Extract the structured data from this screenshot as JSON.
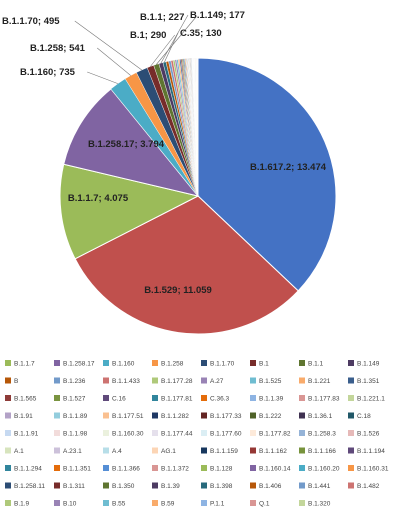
{
  "chart_data": {
    "type": "pie",
    "title": "",
    "slices": [
      {
        "label": "B.1.617.2",
        "value": 13474,
        "color": "#4472C4",
        "shown_label": "B.1.617.2; 13.474"
      },
      {
        "label": "B.1.529",
        "value": 11059,
        "color": "#C0504D",
        "shown_label": "B.1.529; 11.059"
      },
      {
        "label": "B.1.1.7",
        "value": 4075,
        "color": "#9BBB59",
        "shown_label": "B.1.1.7; 4.075"
      },
      {
        "label": "B.1.258.17",
        "value": 3794,
        "color": "#8064A2",
        "shown_label": "B.1.258.17; 3.794"
      },
      {
        "label": "B.1.160",
        "value": 735,
        "color": "#4BACC6",
        "shown_label": "B.1.160; 735"
      },
      {
        "label": "B.1.258",
        "value": 541,
        "color": "#F79646",
        "shown_label": "B.1.258; 541"
      },
      {
        "label": "B.1.1.70",
        "value": 495,
        "color": "#2C4D75",
        "shown_label": "B.1.1.70; 495"
      },
      {
        "label": "B.1",
        "value": 290,
        "color": "#772C2A",
        "shown_label": "B.1; 290"
      },
      {
        "label": "B.1.1",
        "value": 227,
        "color": "#5F7530",
        "shown_label": "B.1.1; 227"
      },
      {
        "label": "B.1.149",
        "value": 177,
        "color": "#4D3B62",
        "shown_label": "B.1.149; 177"
      },
      {
        "label": "C.35",
        "value": 130,
        "color": "#276A7C",
        "shown_label": "C.35; 130"
      },
      {
        "label": "B",
        "value": 110,
        "color": "#B65708",
        "shown_label": ""
      },
      {
        "label": "B.1.236",
        "value": 100,
        "color": "#729ACA",
        "shown_label": ""
      },
      {
        "label": "B.1.1.433",
        "value": 90,
        "color": "#CD7371",
        "shown_label": ""
      },
      {
        "label": "B.1.177.28",
        "value": 80,
        "color": "#AFC97A",
        "shown_label": ""
      },
      {
        "label": "A.27",
        "value": 72,
        "color": "#9983B5",
        "shown_label": ""
      },
      {
        "label": "B.1.525",
        "value": 66,
        "color": "#6FBDD1",
        "shown_label": ""
      },
      {
        "label": "B.1.221",
        "value": 60,
        "color": "#F9AB6B",
        "shown_label": ""
      },
      {
        "label": "B.1.351",
        "value": 55,
        "color": "#3A5E8C",
        "shown_label": ""
      },
      {
        "label": "B.1.565",
        "value": 50,
        "color": "#8E3B38",
        "shown_label": ""
      },
      {
        "label": "B.1.527",
        "value": 46,
        "color": "#7A9440",
        "shown_label": ""
      },
      {
        "label": "C.16",
        "value": 42,
        "color": "#604A7B",
        "shown_label": ""
      },
      {
        "label": "B.1.177.81",
        "value": 38,
        "color": "#31859C",
        "shown_label": ""
      },
      {
        "label": "C.36.3",
        "value": 35,
        "color": "#E46C0A",
        "shown_label": ""
      },
      {
        "label": "B.1.1.39",
        "value": 32,
        "color": "#8EB4E3",
        "shown_label": ""
      },
      {
        "label": "B.1.177.83",
        "value": 30,
        "color": "#D99694",
        "shown_label": ""
      },
      {
        "label": "B.1.221.1",
        "value": 28,
        "color": "#C3D69B",
        "shown_label": ""
      },
      {
        "label": "B.1.91",
        "value": 26,
        "color": "#B3A2C7",
        "shown_label": ""
      },
      {
        "label": "B.1.1.89",
        "value": 24,
        "color": "#93CDDD",
        "shown_label": ""
      },
      {
        "label": "B.1.177.51",
        "value": 22,
        "color": "#FAC090",
        "shown_label": ""
      },
      {
        "label": "B.1.1.282",
        "value": 20,
        "color": "#1F3864",
        "shown_label": ""
      },
      {
        "label": "B.1.177.33",
        "value": 19,
        "color": "#632523",
        "shown_label": ""
      },
      {
        "label": "B.1.222",
        "value": 18,
        "color": "#4F6228",
        "shown_label": ""
      },
      {
        "label": "B.1.36.1",
        "value": 17,
        "color": "#3F3151",
        "shown_label": ""
      },
      {
        "label": "C.18",
        "value": 16,
        "color": "#215868",
        "shown_label": ""
      },
      {
        "label": "B.1.1.91",
        "value": 15,
        "color": "#C6D9F1",
        "shown_label": ""
      },
      {
        "label": "B.1.1.98",
        "value": 14,
        "color": "#F2DCDB",
        "shown_label": ""
      },
      {
        "label": "B.1.160.30",
        "value": 13,
        "color": "#EBF1DE",
        "shown_label": ""
      },
      {
        "label": "B.1.177.44",
        "value": 12,
        "color": "#E5E0EC",
        "shown_label": ""
      },
      {
        "label": "B.1.177.60",
        "value": 12,
        "color": "#DBEEF4",
        "shown_label": ""
      },
      {
        "label": "B.1.177.82",
        "value": 11,
        "color": "#FDEADA",
        "shown_label": ""
      },
      {
        "label": "B.1.258.3",
        "value": 11,
        "color": "#95B3D7",
        "shown_label": ""
      },
      {
        "label": "B.1.526",
        "value": 10,
        "color": "#E6B9B8",
        "shown_label": ""
      },
      {
        "label": "A.1",
        "value": 10,
        "color": "#D7E4BD",
        "shown_label": ""
      },
      {
        "label": "A.23.1",
        "value": 9,
        "color": "#CCC1DA",
        "shown_label": ""
      },
      {
        "label": "A.4",
        "value": 9,
        "color": "#B7DEE8",
        "shown_label": ""
      },
      {
        "label": "AG.1",
        "value": 8,
        "color": "#FCD5B5",
        "shown_label": ""
      },
      {
        "label": "B.1.1.159",
        "value": 8,
        "color": "#17375E",
        "shown_label": ""
      },
      {
        "label": "B.1.1.162",
        "value": 8,
        "color": "#953735",
        "shown_label": ""
      },
      {
        "label": "B.1.1.166",
        "value": 7,
        "color": "#77933C",
        "shown_label": ""
      },
      {
        "label": "B.1.1.194",
        "value": 7,
        "color": "#5F497A",
        "shown_label": ""
      },
      {
        "label": "B.1.1.294",
        "value": 7,
        "color": "#31859C",
        "shown_label": ""
      },
      {
        "label": "B.1.1.351",
        "value": 6,
        "color": "#E46C0A",
        "shown_label": ""
      },
      {
        "label": "B.1.1.366",
        "value": 6,
        "color": "#558ED5",
        "shown_label": ""
      },
      {
        "label": "B.1.1.372",
        "value": 6,
        "color": "#D99694",
        "shown_label": ""
      },
      {
        "label": "B.1.128",
        "value": 6,
        "color": "#9BBB59",
        "shown_label": ""
      },
      {
        "label": "B.1.160.14",
        "value": 5,
        "color": "#8064A2",
        "shown_label": ""
      },
      {
        "label": "B.1.160.20",
        "value": 5,
        "color": "#4BACC6",
        "shown_label": ""
      },
      {
        "label": "B.1.160.31",
        "value": 5,
        "color": "#F79646",
        "shown_label": ""
      },
      {
        "label": "B.1.258.11",
        "value": 5,
        "color": "#2C4D75",
        "shown_label": ""
      },
      {
        "label": "B.1.311",
        "value": 5,
        "color": "#772C2A",
        "shown_label": ""
      },
      {
        "label": "B.1.350",
        "value": 4,
        "color": "#5F7530",
        "shown_label": ""
      },
      {
        "label": "B.1.39",
        "value": 4,
        "color": "#4D3B62",
        "shown_label": ""
      },
      {
        "label": "B.1.398",
        "value": 4,
        "color": "#276A7C",
        "shown_label": ""
      },
      {
        "label": "B.1.406",
        "value": 4,
        "color": "#B65708",
        "shown_label": ""
      },
      {
        "label": "B.1.441",
        "value": 4,
        "color": "#729ACA",
        "shown_label": ""
      },
      {
        "label": "B.1.482",
        "value": 3,
        "color": "#CD7371",
        "shown_label": ""
      },
      {
        "label": "B.1.9",
        "value": 3,
        "color": "#AFC97A",
        "shown_label": ""
      },
      {
        "label": "B.10",
        "value": 3,
        "color": "#9983B5",
        "shown_label": ""
      },
      {
        "label": "B.55",
        "value": 3,
        "color": "#6FBDD1",
        "shown_label": ""
      },
      {
        "label": "B.59",
        "value": 3,
        "color": "#F9AB6B",
        "shown_label": ""
      },
      {
        "label": "P.1.1",
        "value": 2,
        "color": "#8EB4E3",
        "shown_label": ""
      },
      {
        "label": "Q.1",
        "value": 2,
        "color": "#D99694",
        "shown_label": ""
      },
      {
        "label": "B.1.320",
        "value": 2,
        "color": "#C3D69B",
        "shown_label": ""
      }
    ],
    "legend": {
      "position": "bottom",
      "rows": [
        [
          "B.1.1.7",
          "B.1.258.17",
          "B.1.160",
          "B.1.258",
          "B.1.1.70",
          "B.1",
          "B.1.1",
          "B.1.149"
        ],
        [
          "B",
          "B.1.236",
          "B.1.1.433",
          "B.1.177.28",
          "A.27",
          "B.1.525",
          "B.1.221",
          "B.1.351"
        ],
        [
          "B.1.565",
          "B.1.527",
          "C.16",
          "B.1.177.81",
          "C.36.3",
          "B.1.1.39",
          "B.1.177.83",
          "B.1.221.1"
        ],
        [
          "B.1.91",
          "B.1.1.89",
          "B.1.177.51",
          "B.1.1.282",
          "B.1.177.33",
          "B.1.222",
          "B.1.36.1",
          "C.18"
        ],
        [
          "B.1.1.91",
          "B.1.1.98",
          "B.1.160.30",
          "B.1.177.44",
          "B.1.177.60",
          "B.1.177.82",
          "B.1.258.3",
          "B.1.526"
        ],
        [
          "A.1",
          "A.23.1",
          "A.4",
          "AG.1",
          "B.1.1.159",
          "B.1.1.162",
          "B.1.1.166",
          "B.1.1.194"
        ],
        [
          "B.1.1.294",
          "B.1.1.351",
          "B.1.1.366",
          "B.1.1.372",
          "B.1.128",
          "B.1.160.14",
          "B.1.160.20",
          "B.1.160.31"
        ],
        [
          "B.1.258.11",
          "B.1.311",
          "B.1.350",
          "B.1.39",
          "B.1.398",
          "B.1.406",
          "B.1.441",
          "B.1.482"
        ],
        [
          "B.1.9",
          "B.10",
          "B.55",
          "B.59",
          "P.1.1",
          "Q.1",
          "B.1.320"
        ]
      ]
    }
  }
}
